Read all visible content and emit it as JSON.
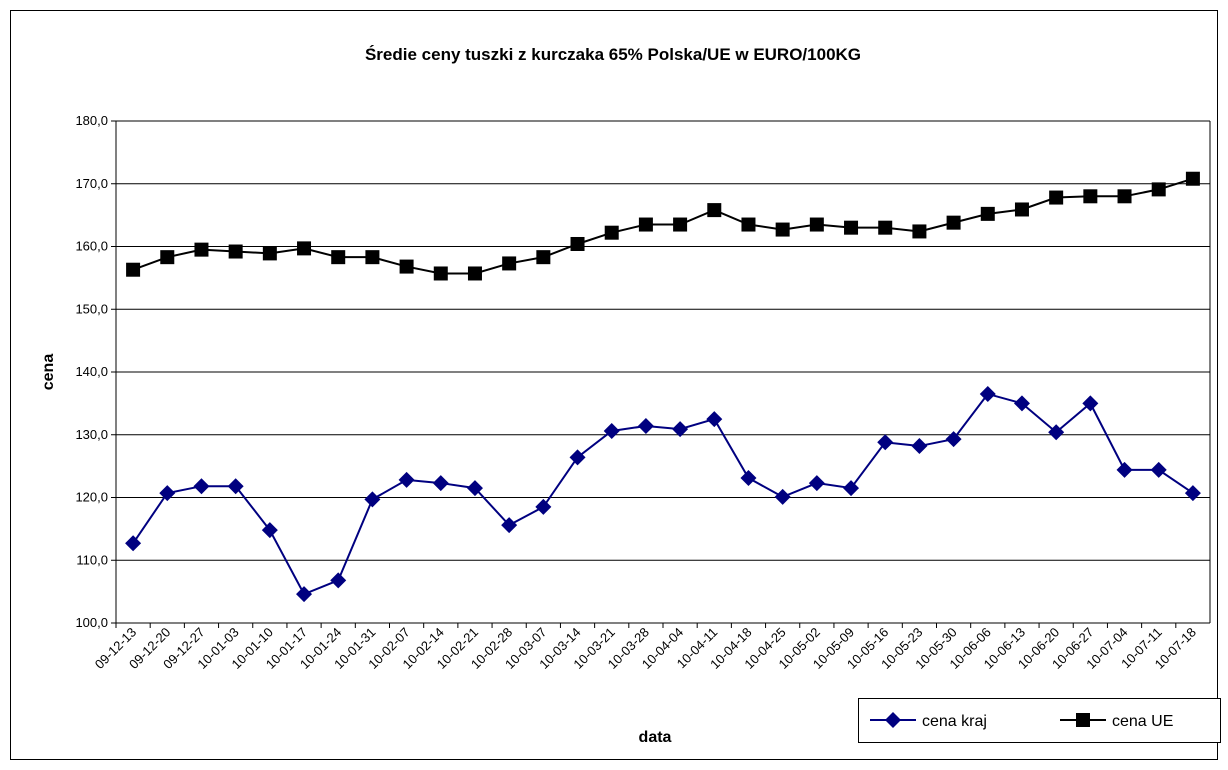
{
  "chart_data": {
    "type": "line",
    "title": "Średie ceny tuszki z kurczaka 65% Polska/UE w EURO/100KG",
    "x_label": "data",
    "y_label": "cena",
    "categories": [
      "09-12-13",
      "09-12-20",
      "09-12-27",
      "10-01-03",
      "10-01-10",
      "10-01-17",
      "10-01-24",
      "10-01-31",
      "10-02-07",
      "10-02-14",
      "10-02-21",
      "10-02-28",
      "10-03-07",
      "10-03-14",
      "10-03-21",
      "10-03-28",
      "10-04-04",
      "10-04-11",
      "10-04-18",
      "10-04-25",
      "10-05-02",
      "10-05-09",
      "10-05-16",
      "10-05-23",
      "10-05-30",
      "10-06-06",
      "10-06-13",
      "10-06-20",
      "10-06-27",
      "10-07-04",
      "10-07-11",
      "10-07-18"
    ],
    "series": [
      {
        "name": "cena kraj",
        "color": "#000080",
        "marker": "diamond",
        "values": [
          112.7,
          120.7,
          121.8,
          121.8,
          114.8,
          104.6,
          106.8,
          119.7,
          122.8,
          122.3,
          121.5,
          115.6,
          118.5,
          126.4,
          130.6,
          131.4,
          130.9,
          132.5,
          123.1,
          120.1,
          122.3,
          121.5,
          128.8,
          128.2,
          129.3,
          136.5,
          135.0,
          130.4,
          135.0,
          124.4,
          124.4,
          120.7
        ]
      },
      {
        "name": "cena UE",
        "color": "#000000",
        "marker": "square",
        "values": [
          156.3,
          158.3,
          159.5,
          159.2,
          158.9,
          159.7,
          158.3,
          158.3,
          156.8,
          155.7,
          155.7,
          157.3,
          158.3,
          160.4,
          162.2,
          163.5,
          163.5,
          165.8,
          163.5,
          162.7,
          163.5,
          163.0,
          163.0,
          162.4,
          163.8,
          165.2,
          165.9,
          167.8,
          168.0,
          168.0,
          169.1,
          170.8
        ]
      }
    ],
    "ylim": [
      100,
      180
    ],
    "yticks": [
      {
        "value": 100,
        "label": "100,0"
      },
      {
        "value": 110,
        "label": "110,0"
      },
      {
        "value": 120,
        "label": "120,0"
      },
      {
        "value": 130,
        "label": "130,0"
      },
      {
        "value": 140,
        "label": "140,0"
      },
      {
        "value": 150,
        "label": "150,0"
      },
      {
        "value": 160,
        "label": "160,0"
      },
      {
        "value": 170,
        "label": "170,0"
      },
      {
        "value": 180,
        "label": "180,0"
      }
    ],
    "grid": true,
    "legend": "bottom-right"
  }
}
